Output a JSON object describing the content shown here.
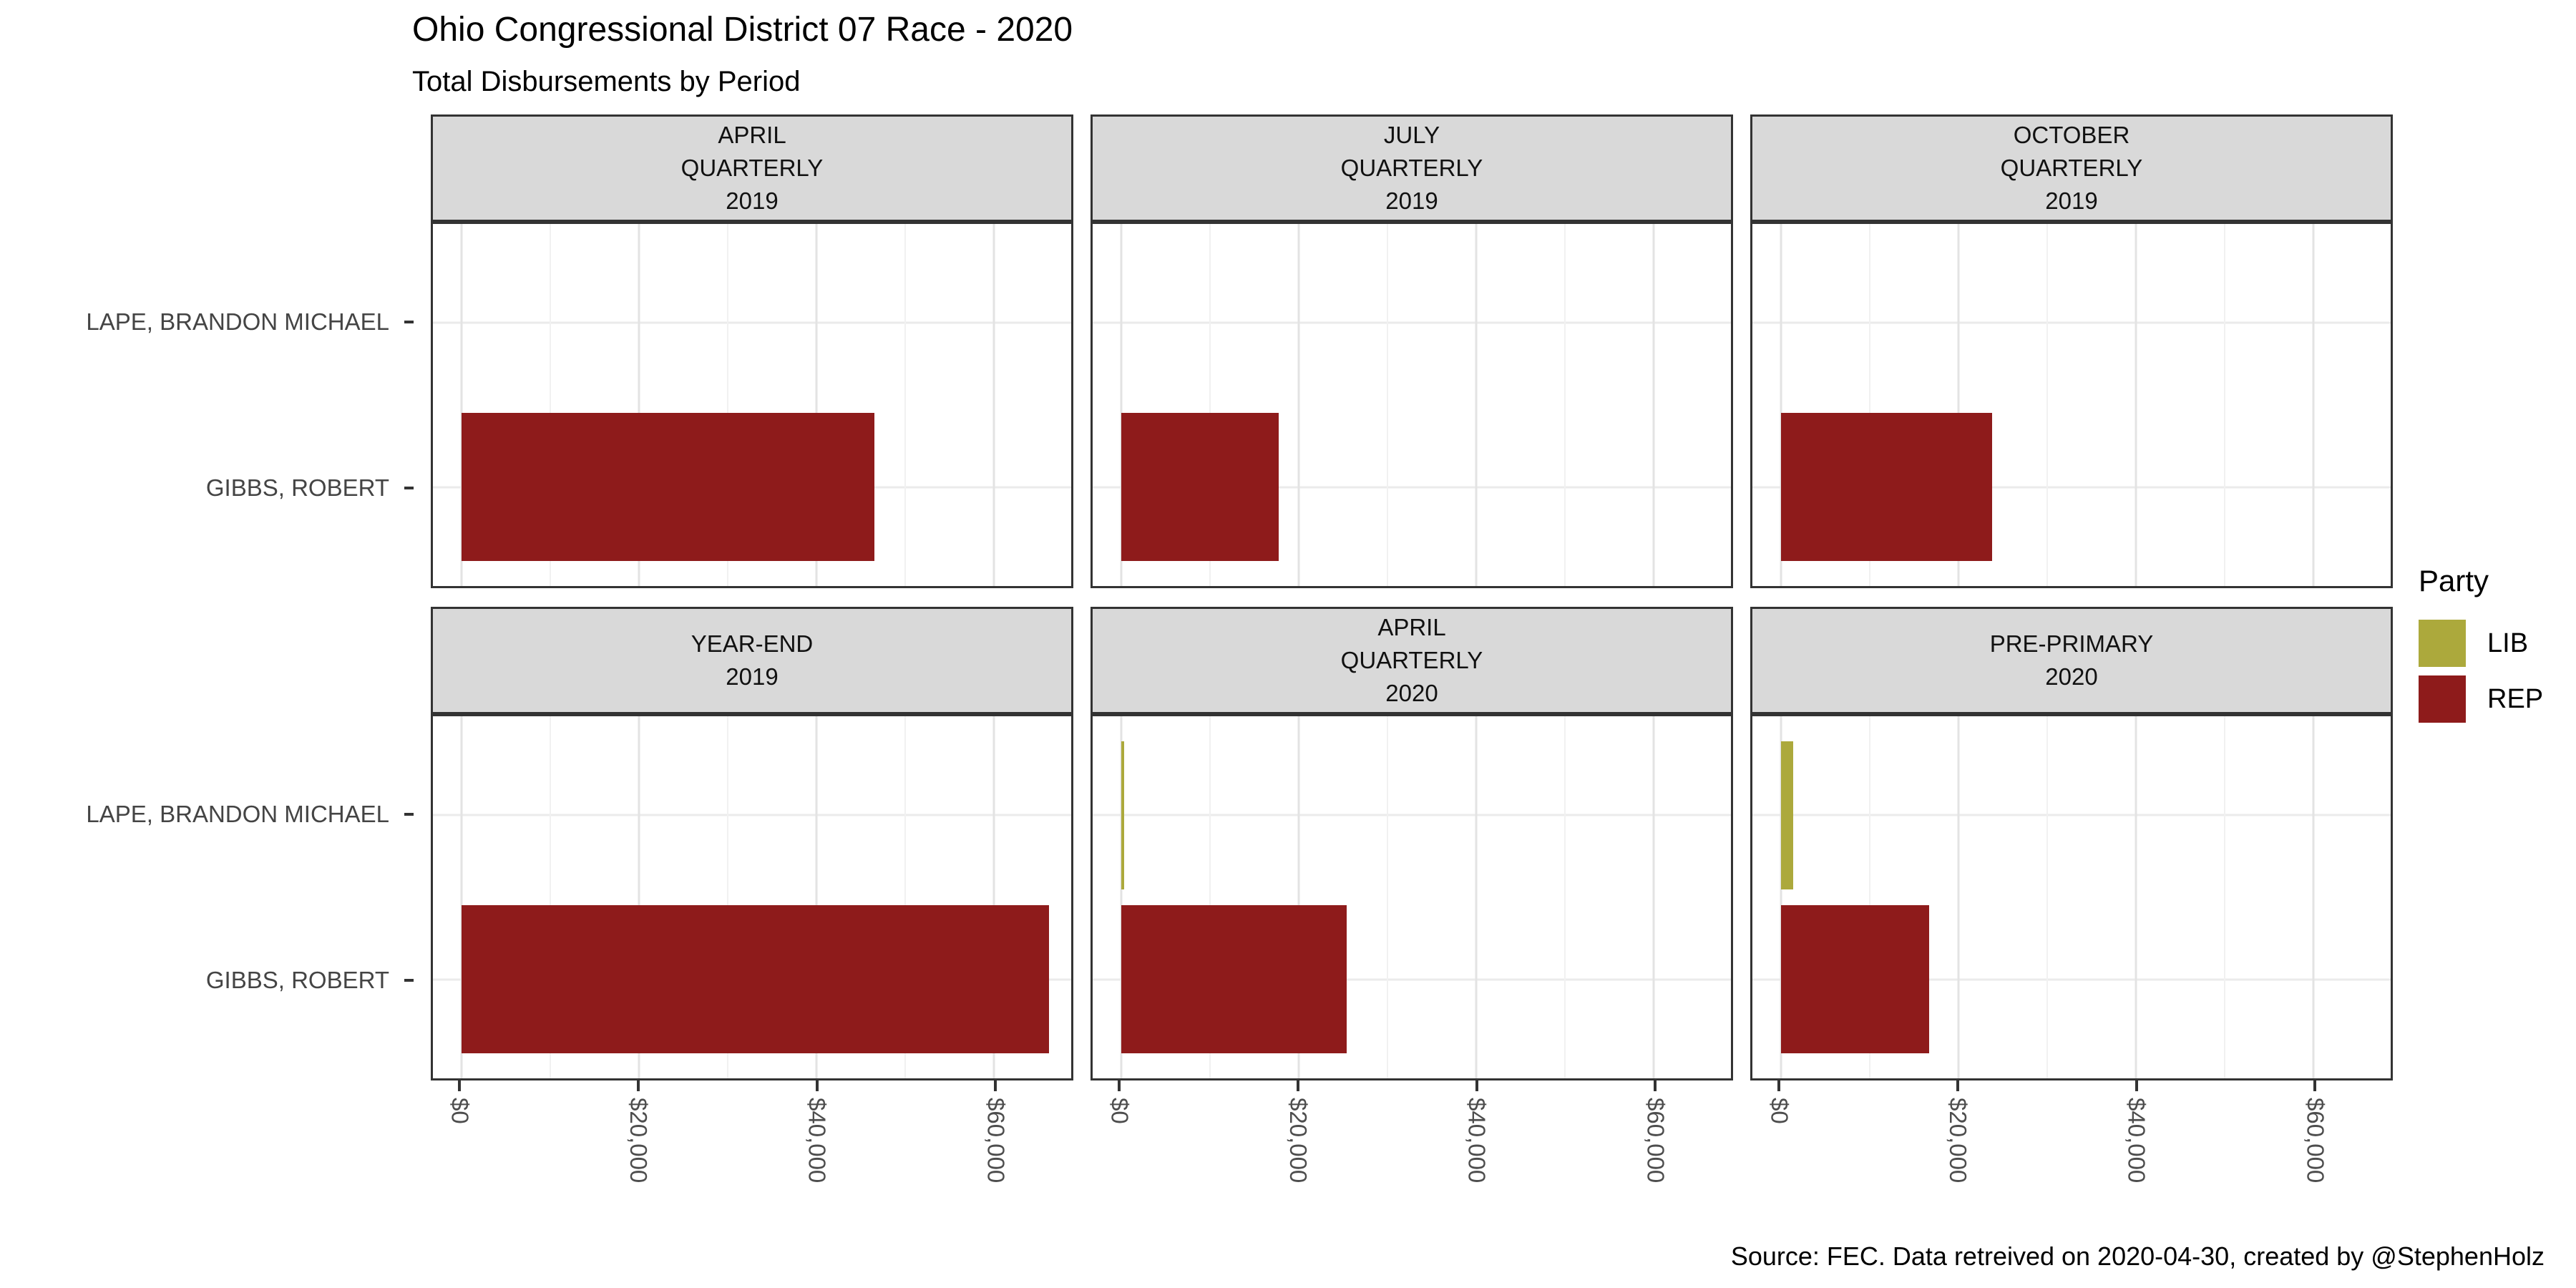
{
  "chart_data": {
    "type": "bar",
    "orientation": "horizontal",
    "title": "Ohio Congressional District 07 Race - 2020",
    "subtitle": "Total Disbursements by Period",
    "caption": "Source: FEC. Data retreived on 2020-04-30, created by @StephenHolz",
    "y_categories": [
      "LAPE, BRANDON MICHAEL",
      "GIBBS, ROBERT"
    ],
    "x_axis": {
      "tick_labels": [
        "$0",
        "$20,000",
        "$40,000",
        "$60,000"
      ],
      "tick_values": [
        0,
        20000,
        40000,
        60000
      ],
      "minor_tick_values": [
        10000,
        30000,
        50000
      ],
      "unit": "USD",
      "axis_range": [
        0,
        71800
      ]
    },
    "legend": {
      "title": "Party",
      "position": "right",
      "entries": [
        {
          "label": "LIB",
          "color": "#ACA93C"
        },
        {
          "label": "REP",
          "color": "#8E1B1B"
        }
      ]
    },
    "colors": {
      "LIB": "#ACA93C",
      "REP": "#8E1B1B"
    },
    "grid_layout": {
      "rows": 2,
      "cols": 3
    },
    "gridlines": {
      "vertical_major": true,
      "vertical_minor": true,
      "horizontal_major": true
    },
    "facets": [
      {
        "period": "APRIL QUARTERLY 2019",
        "label_lines": [
          "APRIL",
          "QUARTERLY",
          "2019"
        ],
        "bars": [
          {
            "candidate": "LAPE, BRANDON MICHAEL",
            "party": "LIB",
            "value": null
          },
          {
            "candidate": "GIBBS, ROBERT",
            "party": "REP",
            "value": 46500
          }
        ]
      },
      {
        "period": "JULY QUARTERLY 2019",
        "label_lines": [
          "JULY",
          "QUARTERLY",
          "2019"
        ],
        "bars": [
          {
            "candidate": "LAPE, BRANDON MICHAEL",
            "party": "LIB",
            "value": null
          },
          {
            "candidate": "GIBBS, ROBERT",
            "party": "REP",
            "value": 17700
          }
        ]
      },
      {
        "period": "OCTOBER QUARTERLY 2019",
        "label_lines": [
          "OCTOBER",
          "QUARTERLY",
          "2019"
        ],
        "bars": [
          {
            "candidate": "LAPE, BRANDON MICHAEL",
            "party": "LIB",
            "value": null
          },
          {
            "candidate": "GIBBS, ROBERT",
            "party": "REP",
            "value": 23800
          }
        ]
      },
      {
        "period": "YEAR-END 2019",
        "label_lines": [
          "YEAR-END",
          "2019"
        ],
        "bars": [
          {
            "candidate": "LAPE, BRANDON MICHAEL",
            "party": "LIB",
            "value": null
          },
          {
            "candidate": "GIBBS, ROBERT",
            "party": "REP",
            "value": 66200
          }
        ]
      },
      {
        "period": "APRIL QUARTERLY 2020",
        "label_lines": [
          "APRIL",
          "QUARTERLY",
          "2020"
        ],
        "bars": [
          {
            "candidate": "LAPE, BRANDON MICHAEL",
            "party": "LIB",
            "value": 350
          },
          {
            "candidate": "GIBBS, ROBERT",
            "party": "REP",
            "value": 25400
          }
        ]
      },
      {
        "period": "PRE-PRIMARY 2020",
        "label_lines": [
          "PRE-PRIMARY",
          "2020"
        ],
        "bars": [
          {
            "candidate": "LAPE, BRANDON MICHAEL",
            "party": "LIB",
            "value": 1400
          },
          {
            "candidate": "GIBBS, ROBERT",
            "party": "REP",
            "value": 16700
          }
        ]
      }
    ]
  }
}
